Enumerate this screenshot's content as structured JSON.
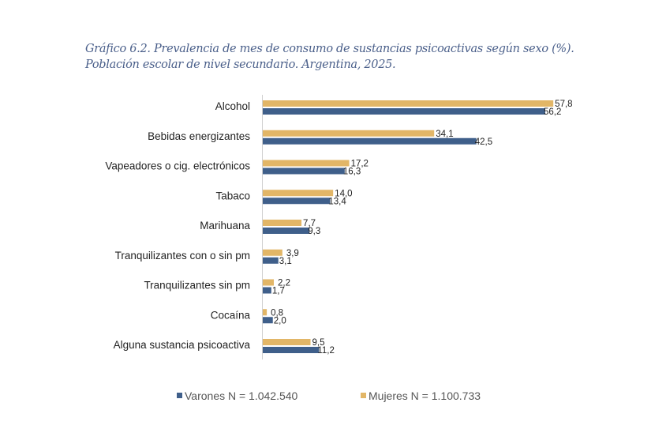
{
  "chart_data": {
    "type": "bar",
    "orientation": "horizontal",
    "title": "Gráfico 6.2. Prevalencia de mes de consumo de sustancias psicoactivas según sexo (%).",
    "subtitle": "Población escolar de nivel secundario. Argentina, 2025.",
    "xlabel": "",
    "ylabel": "",
    "xlim": [
      0,
      60
    ],
    "grid": false,
    "legend_position": "bottom",
    "categories": [
      "Alcohol",
      "Bebidas energizantes",
      "Vapeadores o cig. electrónicos",
      "Tabaco",
      "Marihuana",
      "Tranquilizantes con o sin pm",
      "Tranquilizantes sin pm",
      "Cocaína",
      "Alguna sustancia psicoactiva"
    ],
    "series": [
      {
        "name": "Mujeres N = 1.100.733",
        "color": "#e2b667",
        "values": [
          57.8,
          34.1,
          17.2,
          14.0,
          7.7,
          3.9,
          2.2,
          0.8,
          9.5
        ],
        "labels": [
          "57,8",
          "34,1",
          "17,2",
          "14,0",
          "7,7",
          "3,9",
          "2,2",
          "0,8",
          "9,5"
        ]
      },
      {
        "name": "Varones N = 1.042.540",
        "color": "#3f5f8a",
        "values": [
          56.2,
          42.5,
          16.3,
          13.4,
          9.3,
          3.1,
          1.7,
          2.0,
          11.2
        ],
        "labels": [
          "56,2",
          "42,5",
          "16,3",
          "13,4",
          "9,3",
          "3,1",
          "1,7",
          "2,0",
          "11,2"
        ]
      }
    ]
  }
}
